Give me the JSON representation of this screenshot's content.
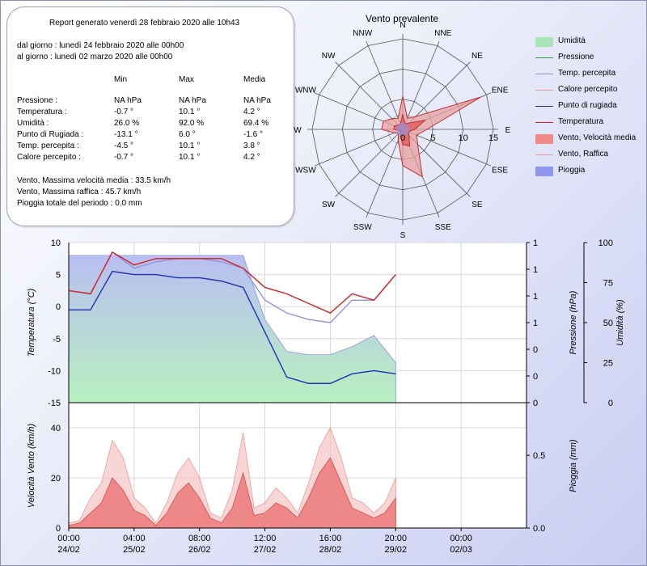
{
  "report": {
    "title": "Report generato venerdì 28 febbraio 2020 alle 10h43",
    "from": "dal giorno : lunedì 24 febbraio 2020 alle 00h00",
    "to": "al giorno : lunedì 02 marzo 2020 alle 00h00",
    "col_min": "Min",
    "col_max": "Max",
    "col_media": "Media",
    "rows": [
      {
        "label": "Pressione :",
        "min": "NA hPa",
        "max": "NA hPa",
        "media": "NA hPa"
      },
      {
        "label": "Temperatura :",
        "min": "-0.7 °",
        "max": "10.1 °",
        "media": "4.2 °"
      },
      {
        "label": "Umidità :",
        "min": "26.0 %",
        "max": "92.0 %",
        "media": "69.4 %"
      },
      {
        "label": "Punto di Rugiada :",
        "min": "-13.1 °",
        "max": "6.0 °",
        "media": "-1.6 °"
      },
      {
        "label": "Temp. percepita :",
        "min": "-4.5 °",
        "max": "10.1 °",
        "media": "3.8 °"
      },
      {
        "label": "Calore percepito :",
        "min": "-0.7 °",
        "max": "10.1 °",
        "media": "4.2 °"
      }
    ],
    "wind_avg_max": "Vento, Massima velocità media : 33.5 km/h",
    "wind_gust_max": "Vento, Massima raffica : 45.7 km/h",
    "rain_total": "Pioggia totale del periodo : 0.0 mm"
  },
  "legend": [
    {
      "label": "Umidità",
      "kind": "fill",
      "color": "#a8e4b8"
    },
    {
      "label": "Pressione",
      "kind": "line",
      "color": "#2e9a3a"
    },
    {
      "label": "Temp. percepita",
      "kind": "line",
      "color": "#8f94dd"
    },
    {
      "label": "Calore percepito",
      "kind": "line",
      "color": "#e89a9a"
    },
    {
      "label": "Punto di rugiada",
      "kind": "line",
      "color": "#1f2fb0"
    },
    {
      "label": "Temperatura",
      "kind": "line",
      "color": "#d42020"
    },
    {
      "label": "Vento, Velocità media",
      "kind": "fill",
      "color": "#f08a8a"
    },
    {
      "label": "Vento, Raffica",
      "kind": "line",
      "color": "#e89a9a"
    },
    {
      "label": "Pioggia",
      "kind": "fill",
      "color": "#8f98ee"
    }
  ],
  "chart_data": [
    {
      "type": "radar",
      "title": "Vento prevalente",
      "directions": [
        "N",
        "NNE",
        "NE",
        "ENE",
        "E",
        "ESE",
        "SE",
        "SSE",
        "S",
        "SSW",
        "SW",
        "WSW",
        "W",
        "WNW",
        "NW",
        "NNW"
      ],
      "rlim": [
        0,
        15
      ],
      "r_ticks": [
        "0",
        "5",
        "10",
        "15"
      ],
      "series": [
        {
          "name": "Vento, Raffica",
          "color": "#e8a0a0",
          "values": [
            5.5,
            2,
            3,
            14,
            4,
            2.5,
            3.5,
            8.5,
            6,
            2,
            1,
            1.5,
            3.5,
            3.5,
            2.5,
            2
          ]
        },
        {
          "name": "Vento, Velocità media",
          "color": "#e05a5a",
          "values": [
            2.5,
            1,
            1.5,
            4,
            2,
            1,
            1.5,
            3,
            2.5,
            1,
            0.5,
            0.5,
            1.5,
            1.5,
            1,
            1
          ]
        }
      ]
    },
    {
      "type": "line",
      "ylabel": "Temperatura (°C)",
      "ylabel_right_1": "Pressione (hPa)",
      "ylabel_right_2": "Umidità (%)",
      "ylim": [
        -15,
        10
      ],
      "y_ticks": [
        "10",
        "5",
        "0",
        "-5",
        "-10",
        "-15"
      ],
      "pressure_ticks": [
        "1",
        "1",
        "1",
        "1",
        "0",
        "0",
        "0"
      ],
      "humidity_ticks": [
        "100",
        "75",
        "50",
        "25",
        "0"
      ],
      "hum_ylim": [
        0,
        100
      ],
      "x_hours": [
        0,
        1,
        2,
        3,
        4,
        5,
        6,
        7,
        8,
        9,
        10,
        11,
        12,
        13,
        14,
        15
      ],
      "series": [
        {
          "name": "Umidità",
          "unit": "%",
          "values": [
            92,
            92,
            92,
            92,
            92,
            92,
            92,
            92,
            92,
            52,
            32,
            30,
            30,
            35,
            42,
            25
          ]
        },
        {
          "name": "Temp. percepita",
          "values": [
            2.5,
            2,
            8.5,
            6,
            7,
            7.5,
            7.5,
            7,
            6,
            1,
            -1,
            -2,
            -2.5,
            1,
            1,
            5
          ]
        },
        {
          "name": "Temperatura",
          "values": [
            2.5,
            2,
            8.5,
            6.5,
            7.5,
            7.5,
            7.5,
            7.5,
            6,
            3,
            2,
            0.5,
            -1,
            2,
            1,
            5
          ]
        },
        {
          "name": "Punto di rugiada",
          "values": [
            -0.5,
            -0.5,
            5.5,
            5,
            5,
            4.5,
            4.5,
            4,
            3,
            -4,
            -11,
            -12,
            -12,
            -10.5,
            -10,
            -10.5
          ]
        }
      ]
    },
    {
      "type": "area",
      "ylabel": "Velocità Vento (km/h)",
      "ylabel_right": "Pioggia (mm)",
      "ylim": [
        0,
        50
      ],
      "y_ticks": [
        "40",
        "20",
        "0"
      ],
      "rain_ticks": [
        "0.5",
        "0.0"
      ],
      "x_ticks": [
        "00:00",
        "04:00",
        "08:00",
        "12:00",
        "16:00",
        "20:00",
        "00:00"
      ],
      "x_dates": [
        "24/02",
        "25/02",
        "26/02",
        "27/02",
        "28/02",
        "29/02",
        "02/03"
      ],
      "x_hours": [
        0,
        0.5,
        1,
        1.5,
        2,
        2.5,
        3,
        3.5,
        4,
        4.5,
        5,
        5.5,
        6,
        6.5,
        7,
        7.5,
        8,
        8.5,
        9,
        9.5,
        10,
        10.5,
        11,
        11.5,
        12,
        12.5,
        13,
        13.5,
        14,
        14.5,
        15
      ],
      "series": [
        {
          "name": "Vento, Raffica",
          "values": [
            2,
            3,
            12,
            18,
            35,
            28,
            12,
            8,
            2,
            10,
            22,
            28,
            20,
            6,
            4,
            15,
            38,
            8,
            10,
            16,
            12,
            6,
            18,
            32,
            40,
            28,
            12,
            10,
            6,
            10,
            20
          ]
        },
        {
          "name": "Vento, Velocità media",
          "values": [
            1,
            2,
            6,
            10,
            20,
            15,
            7,
            5,
            1,
            6,
            14,
            18,
            12,
            4,
            2,
            8,
            22,
            5,
            6,
            10,
            8,
            4,
            12,
            22,
            28,
            18,
            8,
            6,
            4,
            6,
            12
          ]
        }
      ]
    }
  ]
}
